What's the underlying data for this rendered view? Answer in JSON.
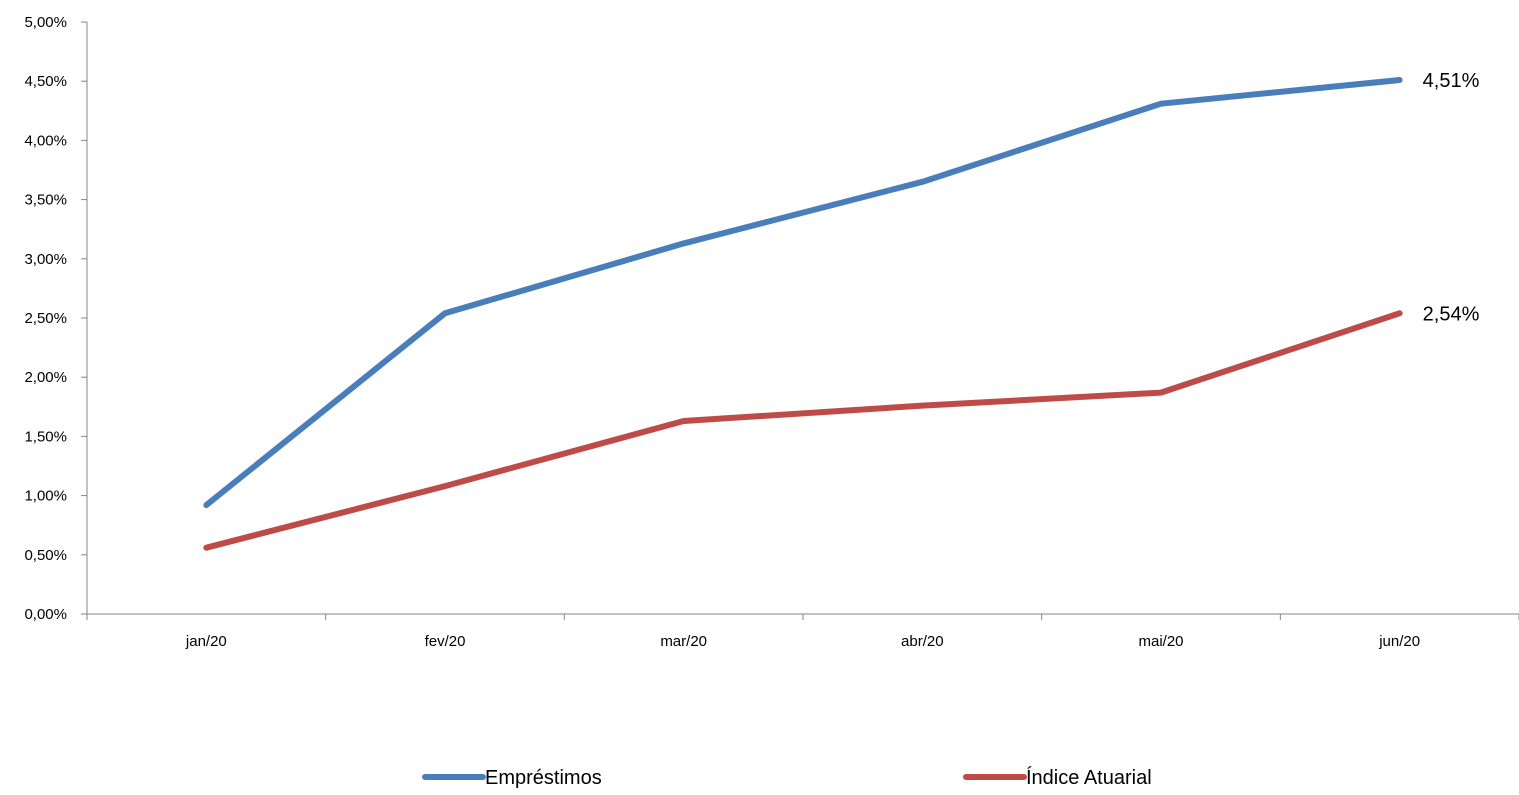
{
  "chart_data": {
    "type": "line",
    "title": "",
    "xlabel": "",
    "ylabel": "",
    "categories": [
      "jan/20",
      "fev/20",
      "mar/20",
      "abr/20",
      "mai/20",
      "jun/20"
    ],
    "ylim": [
      0,
      5
    ],
    "y_ticks": [
      0,
      0.5,
      1,
      1.5,
      2,
      2.5,
      3,
      3.5,
      4,
      4.5,
      5
    ],
    "y_tick_labels": [
      "0,00%",
      "0,50%",
      "1,00%",
      "1,50%",
      "2,00%",
      "2,50%",
      "3,00%",
      "3,50%",
      "4,00%",
      "4,50%",
      "5,00%"
    ],
    "grid": false,
    "legend_position": "bottom",
    "series": [
      {
        "name": "Empréstimos",
        "color": "#4a7ebb",
        "values": [
          0.92,
          2.54,
          3.13,
          3.65,
          4.31,
          4.51
        ],
        "end_label": "4,51%"
      },
      {
        "name": "Índice Atuarial",
        "color": "#be4b48",
        "values": [
          0.56,
          1.08,
          1.63,
          1.76,
          1.87,
          2.54
        ],
        "end_label": "2,54%"
      }
    ]
  }
}
